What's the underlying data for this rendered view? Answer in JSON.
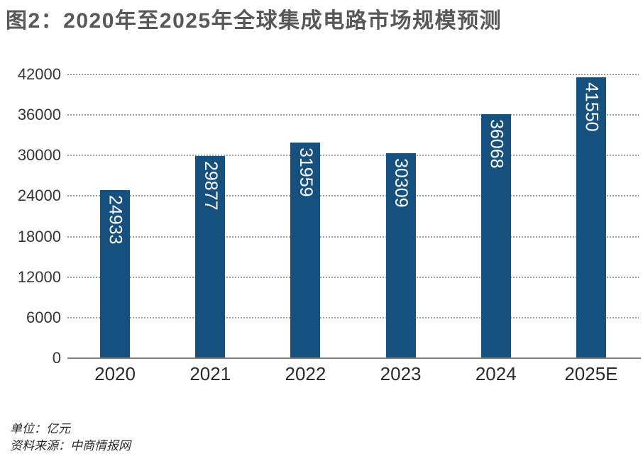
{
  "title": "图2：2020年至2025年全球集成电路市场规模预测",
  "chart_data": {
    "type": "bar",
    "title": "图2：2020年至2025年全球集成电路市场规模预测",
    "categories": [
      "2020",
      "2021",
      "2022",
      "2023",
      "2024",
      "2025E"
    ],
    "values": [
      24933,
      29877,
      31959,
      30309,
      36068,
      41550
    ],
    "xlabel": "",
    "ylabel": "",
    "ylim": [
      0,
      42000
    ],
    "yticks": [
      0,
      6000,
      12000,
      18000,
      24000,
      30000,
      36000,
      42000
    ],
    "grid": "horizontal-dotted",
    "legend": "none",
    "bar_color": "#15507e",
    "value_label_color": "#ffffff",
    "value_label_rotation_deg": 90,
    "unit": "亿元"
  },
  "footer": {
    "unit_label": "单位：亿元",
    "source_label": "资料来源：中商情报网"
  },
  "colors": {
    "title_text": "#595859",
    "axis_line": "#7f7f7f",
    "gridline": "#9c9c9c",
    "tick_text": "#353535",
    "footer_text": "#2d2d2d",
    "background": "#ffffff"
  }
}
